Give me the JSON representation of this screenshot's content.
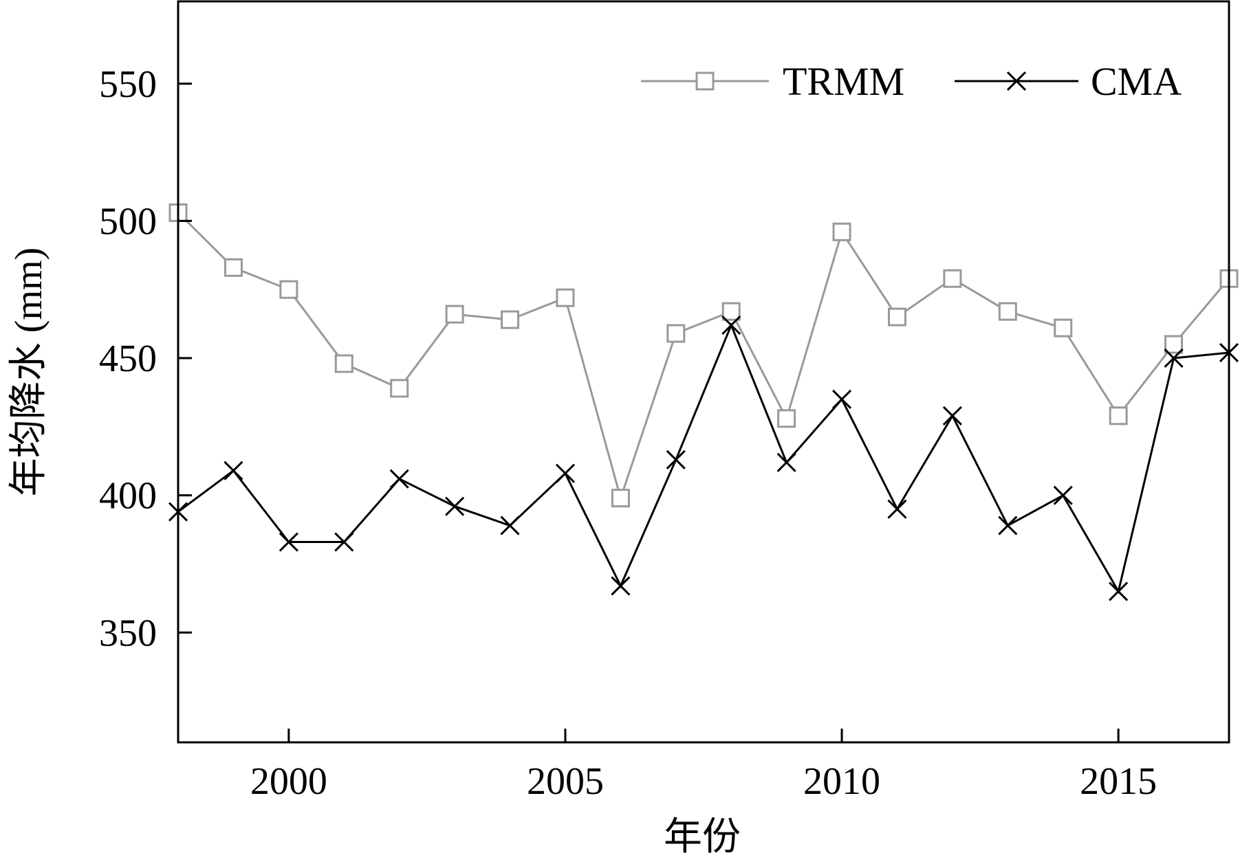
{
  "chart_data": {
    "type": "line",
    "title": "",
    "xlabel": "年份",
    "ylabel": "年均降水 (mm)",
    "xlim": [
      1998,
      2017
    ],
    "ylim": [
      310,
      580
    ],
    "x_ticks": [
      2000,
      2005,
      2010,
      2015
    ],
    "y_ticks": [
      350,
      400,
      450,
      500,
      550
    ],
    "x_tick_labels": [
      "2000",
      "2005",
      "2010",
      "2015"
    ],
    "y_tick_labels": [
      "350",
      "400",
      "450",
      "500",
      "550"
    ],
    "grid": false,
    "legend_position": "top-right",
    "x": [
      1998,
      1999,
      2000,
      2001,
      2002,
      2003,
      2004,
      2005,
      2006,
      2007,
      2008,
      2009,
      2010,
      2011,
      2012,
      2013,
      2014,
      2015,
      2016,
      2017
    ],
    "series": [
      {
        "name": "TRMM",
        "color": "#999999",
        "marker": "square",
        "values": [
          503,
          483,
          475,
          448,
          439,
          466,
          464,
          472,
          399,
          459,
          467,
          428,
          496,
          465,
          479,
          467,
          461,
          429,
          455,
          479
        ]
      },
      {
        "name": "CMA",
        "color": "#000000",
        "marker": "x",
        "values": [
          394,
          409,
          383,
          383,
          406,
          396,
          389,
          408,
          367,
          413,
          462,
          412,
          435,
          395,
          429,
          389,
          400,
          365,
          450,
          452
        ]
      }
    ]
  }
}
